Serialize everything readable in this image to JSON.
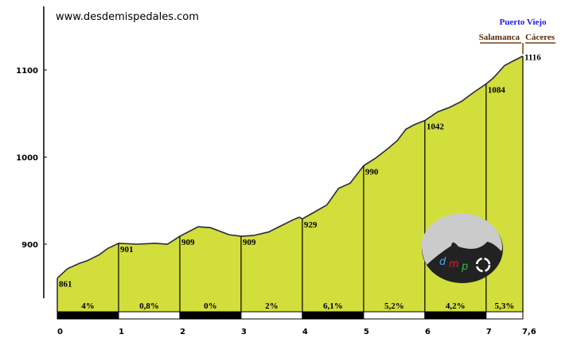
{
  "site": "www.desdemispedales.com",
  "summit": {
    "name": "Puerto Viejo",
    "left_side": "Salamanca",
    "right_side": "Cáceres"
  },
  "colors": {
    "fill": "#d2de3c",
    "summit_name": "#1a1aff",
    "side_labels": "#7a3e10"
  },
  "logo": {
    "letters": [
      "d",
      "m",
      "p"
    ],
    "letter_colors": [
      "#3ab0e8",
      "#e02020",
      "#30c040"
    ]
  },
  "chart_data": {
    "type": "area",
    "xlabel": "",
    "ylabel": "",
    "xlim": [
      0,
      7.6
    ],
    "ylim": [
      822,
      1170
    ],
    "x_ticks": [
      "0",
      "1",
      "2",
      "3",
      "4",
      "5",
      "6",
      "7",
      "7,6"
    ],
    "x_tick_values": [
      0,
      1,
      2,
      3,
      4,
      5,
      6,
      7,
      7.6
    ],
    "y_ticks": [
      900,
      1000,
      1100
    ],
    "profile": [
      [
        0,
        861
      ],
      [
        0.17,
        872
      ],
      [
        0.36,
        878
      ],
      [
        0.49,
        881
      ],
      [
        0.69,
        888
      ],
      [
        0.82,
        895
      ],
      [
        1.0,
        901
      ],
      [
        1.3,
        900
      ],
      [
        1.6,
        901
      ],
      [
        1.8,
        900
      ],
      [
        2.0,
        909
      ],
      [
        2.3,
        920
      ],
      [
        2.5,
        919
      ],
      [
        2.8,
        911
      ],
      [
        3.0,
        909
      ],
      [
        3.2,
        910
      ],
      [
        3.45,
        914
      ],
      [
        3.65,
        921
      ],
      [
        3.85,
        928
      ],
      [
        3.95,
        931
      ],
      [
        4.0,
        929
      ],
      [
        4.2,
        937
      ],
      [
        4.4,
        945
      ],
      [
        4.59,
        964
      ],
      [
        4.78,
        970
      ],
      [
        5.0,
        990
      ],
      [
        5.2,
        999
      ],
      [
        5.4,
        1010
      ],
      [
        5.55,
        1019
      ],
      [
        5.69,
        1032
      ],
      [
        5.82,
        1037
      ],
      [
        6.0,
        1042
      ],
      [
        6.21,
        1052
      ],
      [
        6.4,
        1057
      ],
      [
        6.6,
        1064
      ],
      [
        6.79,
        1074
      ],
      [
        7.0,
        1084
      ],
      [
        7.12,
        1091
      ],
      [
        7.3,
        1105
      ],
      [
        7.43,
        1110
      ],
      [
        7.6,
        1116
      ]
    ],
    "km_markers": [
      {
        "km": 0,
        "elevation": 861
      },
      {
        "km": 1,
        "elevation": 901
      },
      {
        "km": 2,
        "elevation": 909
      },
      {
        "km": 3,
        "elevation": 909
      },
      {
        "km": 4,
        "elevation": 929
      },
      {
        "km": 5,
        "elevation": 990
      },
      {
        "km": 6,
        "elevation": 1042
      },
      {
        "km": 7,
        "elevation": 1084
      },
      {
        "km": 7.6,
        "elevation": 1116
      }
    ],
    "segments": [
      {
        "from": 0,
        "to": 1,
        "gradient": "4%"
      },
      {
        "from": 1,
        "to": 2,
        "gradient": "0,8%"
      },
      {
        "from": 2,
        "to": 3,
        "gradient": "0%"
      },
      {
        "from": 3,
        "to": 4,
        "gradient": "2%"
      },
      {
        "from": 4,
        "to": 5,
        "gradient": "6,1%"
      },
      {
        "from": 5,
        "to": 6,
        "gradient": "5,2%"
      },
      {
        "from": 6,
        "to": 7,
        "gradient": "4,2%"
      },
      {
        "from": 7,
        "to": 7.6,
        "gradient": "5,3%"
      }
    ]
  }
}
